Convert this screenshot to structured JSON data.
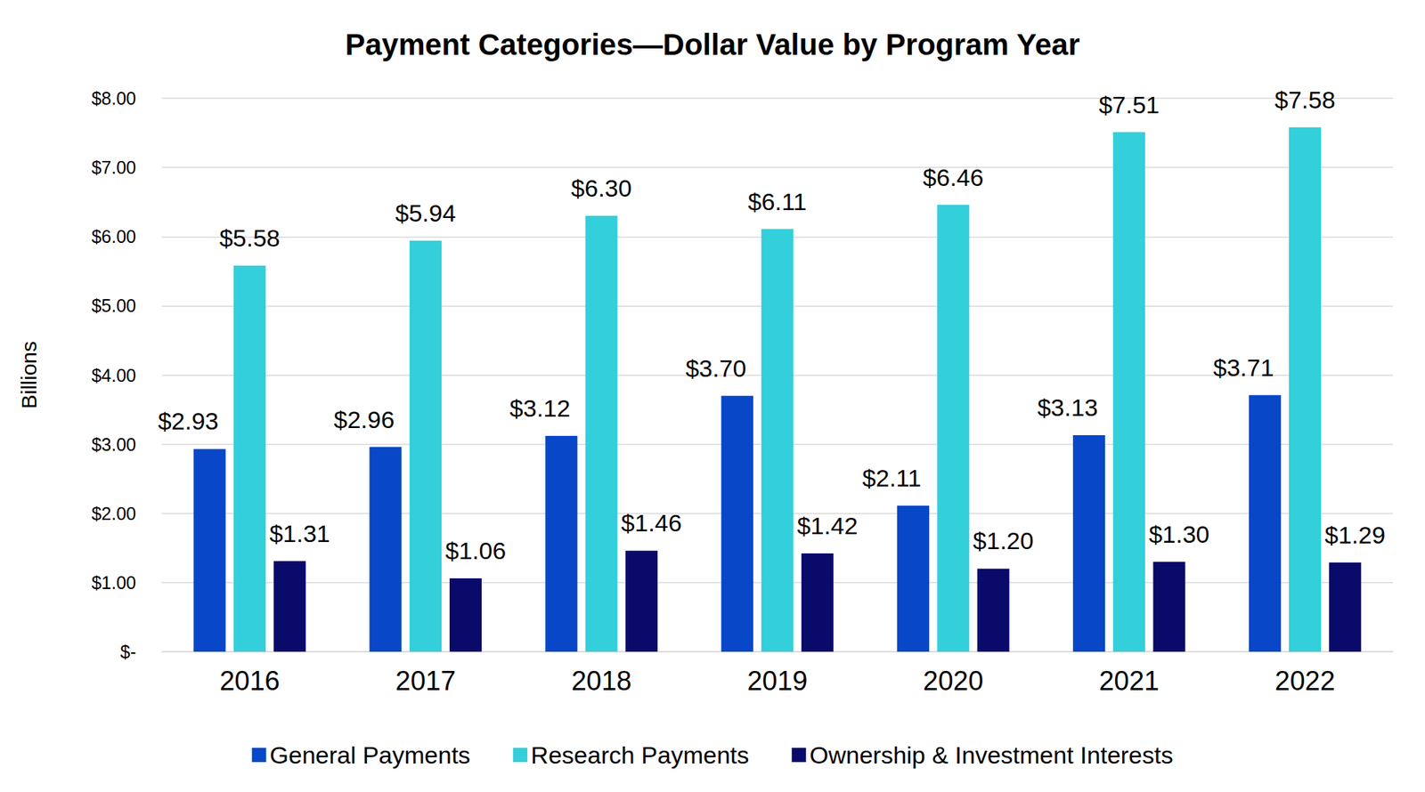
{
  "chart_data": {
    "type": "bar",
    "title": "Payment Categories—Dollar Value by Program Year",
    "y_label": "Billions",
    "categories": [
      "2016",
      "2017",
      "2018",
      "2019",
      "2020",
      "2021",
      "2022"
    ],
    "series": [
      {
        "name": "General Payments",
        "color": "#0747c8",
        "values": [
          2.93,
          2.96,
          3.12,
          3.7,
          2.11,
          3.13,
          3.71
        ],
        "value_labels": [
          "$2.93",
          "$2.96",
          "$3.12",
          "$3.70",
          "$2.11",
          "$3.13",
          "$3.71"
        ]
      },
      {
        "name": "Research Payments",
        "color": "#33cfda",
        "values": [
          5.58,
          5.94,
          6.3,
          6.11,
          6.46,
          7.51,
          7.58
        ],
        "value_labels": [
          "$5.58",
          "$5.94",
          "$6.30",
          "$6.11",
          "$6.46",
          "$7.51",
          "$7.58"
        ]
      },
      {
        "name": "Ownership & Investment Interests",
        "color": "#0a0a6b",
        "values": [
          1.31,
          1.06,
          1.46,
          1.42,
          1.2,
          1.3,
          1.29
        ],
        "value_labels": [
          "$1.31",
          "$1.06",
          "$1.46",
          "$1.42",
          "$1.20",
          "$1.30",
          "$1.29"
        ]
      }
    ],
    "ylim": [
      0,
      8
    ],
    "yticks": [
      {
        "value": 0,
        "label": "$-"
      },
      {
        "value": 1,
        "label": "$1.00"
      },
      {
        "value": 2,
        "label": "$2.00"
      },
      {
        "value": 3,
        "label": "$3.00"
      },
      {
        "value": 4,
        "label": "$4.00"
      },
      {
        "value": 5,
        "label": "$5.00"
      },
      {
        "value": 6,
        "label": "$6.00"
      },
      {
        "value": 7,
        "label": "$7.00"
      },
      {
        "value": 8,
        "label": "$8.00"
      }
    ],
    "grid": true,
    "legend": "bottom",
    "data_labels": true
  }
}
